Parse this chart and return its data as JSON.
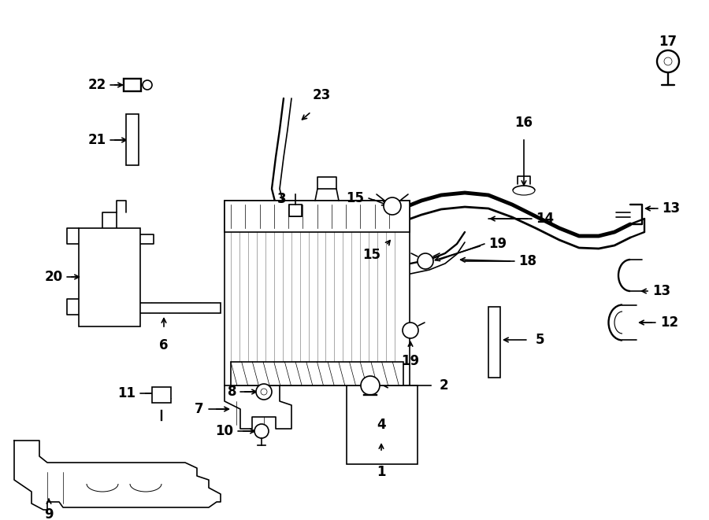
{
  "bg_color": "#ffffff",
  "line_color": "#000000",
  "fig_width": 9.0,
  "fig_height": 6.61,
  "dpi": 100,
  "lw": 1.2,
  "label_fs": 12
}
